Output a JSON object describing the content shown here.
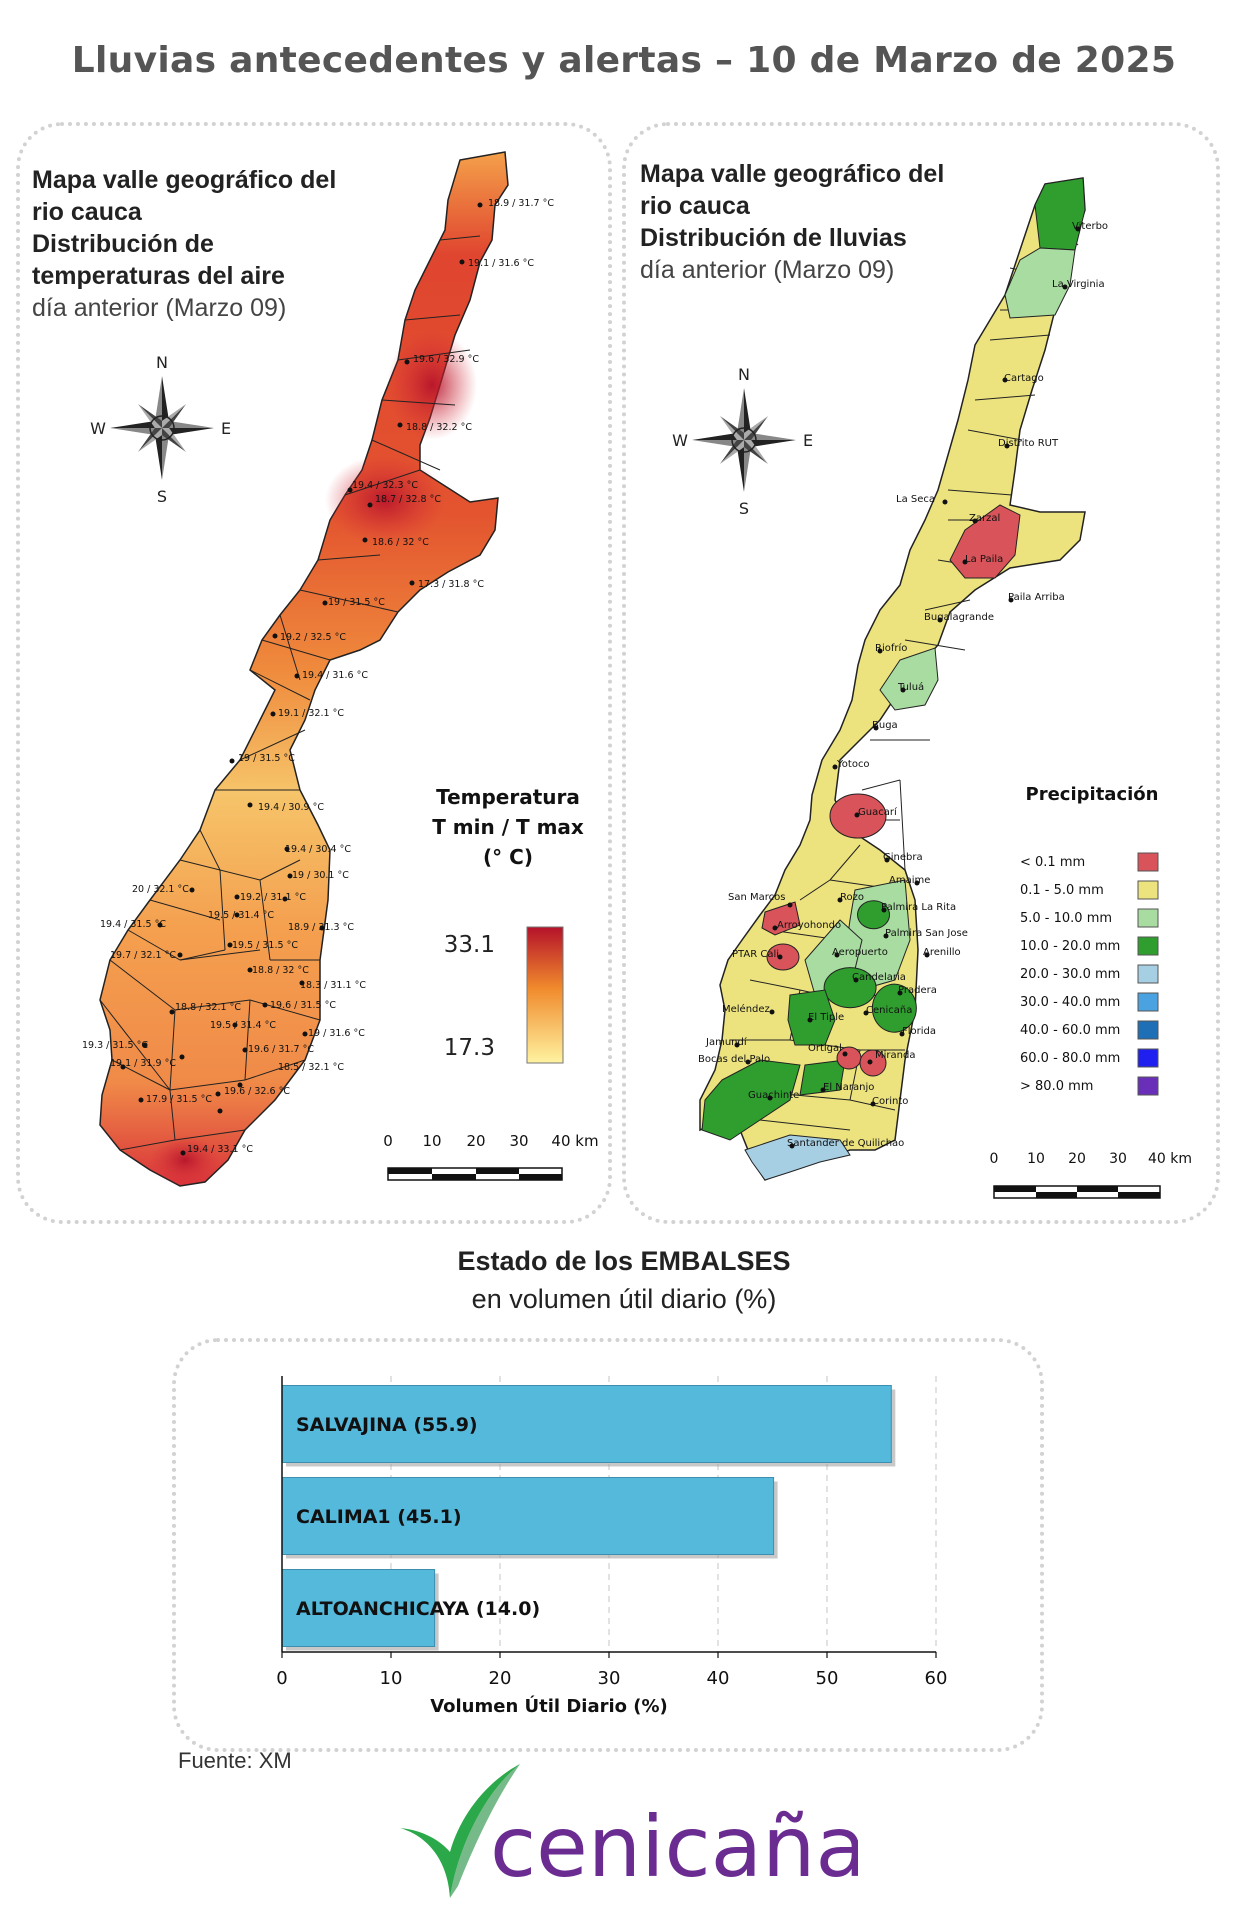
{
  "title": "Lluvias antecedentes y alertas – 10 de Marzo de 2025",
  "temp_panel": {
    "title_line1": "Mapa valle geográfico del",
    "title_line2": "rio cauca",
    "title_line3": "Distribución de",
    "title_line4": "temperaturas del aire",
    "subtitle": "día anterior (Marzo 09)",
    "legend_title_1": "Temperatura",
    "legend_title_2": "T min / T max",
    "legend_title_3": "(° C)",
    "legend_max": "33.1",
    "legend_min": "17.3",
    "colors": {
      "high": "#c8102e",
      "mid": "#f08a2c",
      "low": "#fff3a0"
    },
    "scale_labels": [
      "0",
      "10",
      "20",
      "30",
      "40 km"
    ],
    "stations": [
      "18.9 / 31.7 °C",
      "19.1 / 31.6 °C",
      "19.6 / 32.9 °C",
      "18.8 / 32.2 °C",
      "19.4 / 32.3 °C",
      "18.7 / 32.8 °C",
      "18.6 / 32 °C",
      "17.3 / 31.8 °C",
      "19 / 31.5 °C",
      "19.2 / 32.5 °C",
      "19.4 / 31.6 °C",
      "19.1 / 32.1 °C",
      "19 / 31.5 °C",
      "19.4 / 30.9 °C",
      "19.4 / 30.4 °C",
      "19 / 30.1 °C",
      "20 / 32.1 °C",
      "19.2 / 31.1 °C",
      "19.4 / 31.5 °C",
      "19.5 / 31.4 °C",
      "18.9 / 31.3 °C",
      "19.7 / 32.1 °C",
      "19.5 / 31.5 °C",
      "18.8 / 32 °C",
      "18.3 / 31.1 °C",
      "18.8 / 32.1 °C",
      "19.6 / 31.5 °C",
      "19.5 / 31.4 °C",
      "19 / 31.6 °C",
      "19.3 / 31.5 °C",
      "19.6 / 31.7 °C",
      "19.1 / 31.9 °C",
      "18.5 / 32.1 °C",
      "17.9 / 31.5 °C",
      "19.6 / 32.6 °C",
      "19.4 / 33.1 °C"
    ]
  },
  "rain_panel": {
    "title_line1": "Mapa valle geográfico del",
    "title_line2": "rio cauca",
    "title_line3": "Distribución de lluvias",
    "subtitle": "día anterior (Marzo 09)",
    "legend_title": "Precipitación",
    "legend": [
      {
        "label": "< 0.1 mm",
        "color": "#d9545a"
      },
      {
        "label": "0.1 - 5.0 mm",
        "color": "#ece37e"
      },
      {
        "label": "5.0 - 10.0 mm",
        "color": "#a8dca0"
      },
      {
        "label": "10.0 - 20.0 mm",
        "color": "#2f9e2f"
      },
      {
        "label": "20.0 - 30.0 mm",
        "color": "#a7cfe3"
      },
      {
        "label": "30.0 - 40.0 mm",
        "color": "#4aa3e0"
      },
      {
        "label": "40.0 - 60.0 mm",
        "color": "#1e6fb5"
      },
      {
        "label": "60.0 - 80.0 mm",
        "color": "#1f1ff0"
      },
      {
        "label": "> 80.0 mm",
        "color": "#6a2fb8"
      }
    ],
    "scale_labels": [
      "0",
      "10",
      "20",
      "30",
      "40 km"
    ],
    "stations": [
      "Viterbo",
      "La Virginia",
      "Cartago",
      "Distrito RUT",
      "La Seca",
      "Zarzal",
      "La Paila",
      "Paila Arriba",
      "Bugalagrande",
      "Riofrío",
      "Tuluá",
      "Buga",
      "Yotoco",
      "Guacarí",
      "Ginebra",
      "Amaime",
      "San Marcos",
      "Rozo",
      "Palmira La Rita",
      "Arroyohondo",
      "Palmira San Jose",
      "Aeropuerto",
      "Arenillo",
      "PTAR Cali",
      "Candelaria",
      "Pradera",
      "Meléndez",
      "Cenicaña",
      "El Tiple",
      "Jamundí",
      "Bocas del Palo",
      "Ortigal",
      "Florida",
      "Miranda",
      "Guachinte",
      "El Naranjo",
      "Corinto",
      "Santander de Quilichao"
    ]
  },
  "compass": {
    "n": "N",
    "s": "S",
    "e": "E",
    "w": "W"
  },
  "reservoirs": {
    "title": "Estado de los EMBALSES",
    "subtitle": "en volumen útil diario (%)",
    "chart_data": {
      "type": "bar",
      "orientation": "horizontal",
      "categories": [
        "SALVAJINA (55.9)",
        "CALIMA1 (45.1)",
        "ALTOANCHICAYA (14.0)"
      ],
      "values": [
        55.9,
        45.1,
        14.0
      ],
      "xlabel": "Volumen Útil Diario (%)",
      "xlim": [
        0,
        60
      ],
      "xticks": [
        "0",
        "10",
        "20",
        "30",
        "40",
        "50",
        "60"
      ],
      "bar_color": "#55b9dc",
      "grid": "vertical dashed"
    }
  },
  "source": "Fuente: XM",
  "logo_text": "cenicaña"
}
